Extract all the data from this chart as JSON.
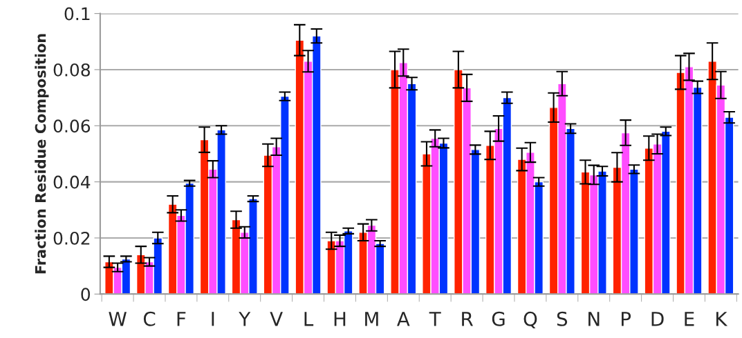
{
  "chart_data": {
    "type": "bar",
    "ylabel": "Fraction Residue Composition",
    "categories": [
      "W",
      "C",
      "F",
      "I",
      "Y",
      "V",
      "L",
      "H",
      "M",
      "A",
      "T",
      "R",
      "G",
      "Q",
      "S",
      "N",
      "P",
      "D",
      "E",
      "K"
    ],
    "series": [
      {
        "color": "#ff2200",
        "values": [
          0.0115,
          0.014,
          0.032,
          0.055,
          0.0265,
          0.0495,
          0.0905,
          0.019,
          0.022,
          0.08,
          0.05,
          0.08,
          0.053,
          0.048,
          0.0665,
          0.0435,
          0.0452,
          0.052,
          0.079,
          0.083
        ],
        "errors": [
          0.002,
          0.003,
          0.003,
          0.0045,
          0.003,
          0.004,
          0.0055,
          0.003,
          0.003,
          0.0065,
          0.0043,
          0.0065,
          0.005,
          0.004,
          0.0052,
          0.0042,
          0.0052,
          0.0043,
          0.006,
          0.0065
        ]
      },
      {
        "color": "#ff4dff",
        "values": [
          0.0095,
          0.0115,
          0.028,
          0.0445,
          0.022,
          0.0525,
          0.083,
          0.019,
          0.0245,
          0.0825,
          0.0555,
          0.0735,
          0.059,
          0.0505,
          0.075,
          0.0425,
          0.0575,
          0.0535,
          0.081,
          0.0745
        ],
        "errors": [
          0.0015,
          0.0015,
          0.002,
          0.003,
          0.002,
          0.003,
          0.0038,
          0.002,
          0.002,
          0.0048,
          0.003,
          0.0048,
          0.0045,
          0.0035,
          0.0043,
          0.0034,
          0.0045,
          0.0035,
          0.0048,
          0.0048
        ]
      },
      {
        "color": "#0033ff",
        "values": [
          0.0125,
          0.02,
          0.0395,
          0.0585,
          0.034,
          0.0705,
          0.092,
          0.0225,
          0.018,
          0.075,
          0.0538,
          0.0515,
          0.07,
          0.04,
          0.059,
          0.0438,
          0.0445,
          0.058,
          0.0737,
          0.063
        ],
        "errors": [
          0.001,
          0.002,
          0.001,
          0.0015,
          0.001,
          0.0015,
          0.0025,
          0.001,
          0.001,
          0.0022,
          0.0017,
          0.0016,
          0.002,
          0.0015,
          0.0017,
          0.0017,
          0.0015,
          0.0015,
          0.0022,
          0.002
        ]
      }
    ],
    "ylim": [
      0,
      0.1
    ],
    "yticks": [
      0,
      0.02,
      0.04,
      0.06,
      0.08,
      0.1
    ],
    "grid": "y"
  }
}
